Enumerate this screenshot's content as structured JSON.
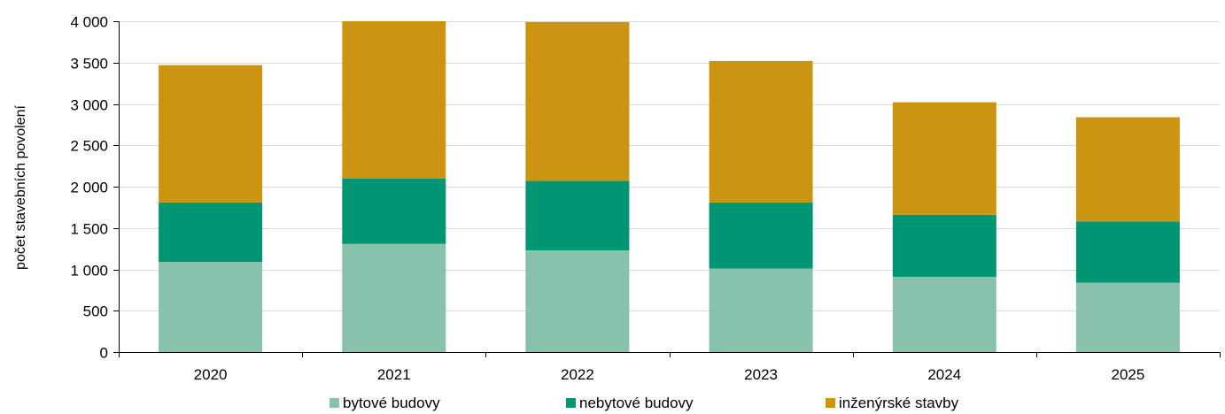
{
  "chart_data": {
    "type": "bar",
    "stacked": true,
    "categories": [
      "2020",
      "2021",
      "2022",
      "2023",
      "2024",
      "2025"
    ],
    "series": [
      {
        "name": "bytové budovy",
        "color": "#88c2ac",
        "values": [
          1090,
          1310,
          1230,
          1010,
          910,
          840
        ]
      },
      {
        "name": "nebytové budovy",
        "color": "#009673",
        "values": [
          720,
          790,
          840,
          800,
          750,
          740
        ]
      },
      {
        "name": "inženýrské stavby",
        "color": "#cc9511",
        "values": [
          1660,
          1900,
          1920,
          1710,
          1360,
          1260
        ]
      }
    ],
    "ylabel": "počet stavebních povolení",
    "xlabel": "",
    "title": "",
    "ylim": [
      0,
      4000
    ],
    "yticks": [
      0,
      500,
      1000,
      1500,
      2000,
      2500,
      3000,
      3500,
      4000
    ],
    "ytick_labels": [
      "0",
      "500",
      "1 000",
      "1 500",
      "2 000",
      "2 500",
      "3 000",
      "3 500",
      "4 000"
    ],
    "grid": "horizontal",
    "legend_position": "bottom"
  }
}
